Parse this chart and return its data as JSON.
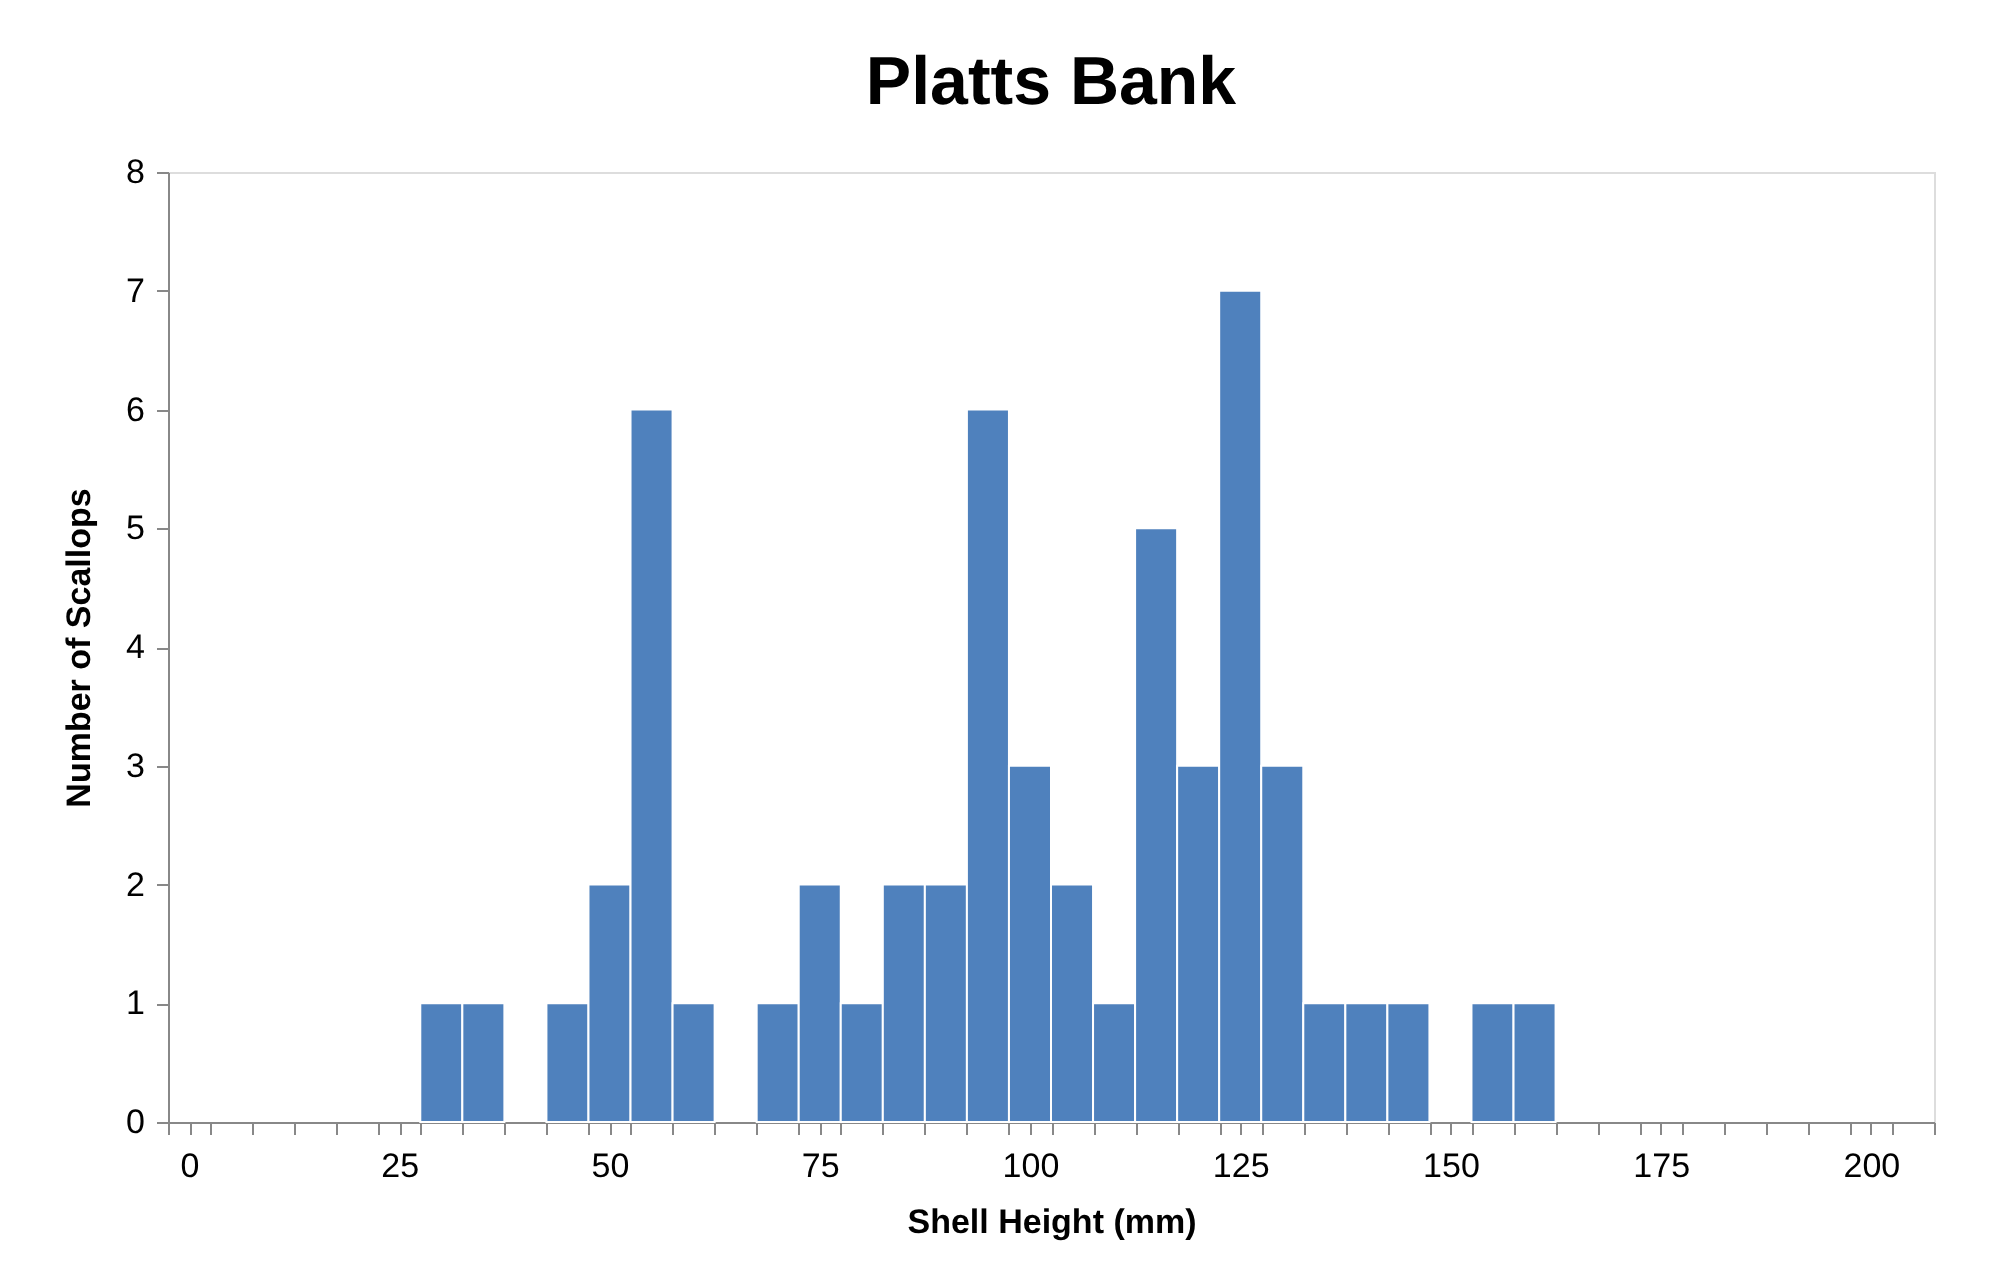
{
  "chart_data": {
    "type": "histogram",
    "title": "Platts Bank",
    "xlabel": "Shell Height (mm)",
    "ylabel": "Number of Scallops",
    "bins": [
      27.5,
      32.5,
      37.5,
      42.5,
      47.5,
      52.5,
      57.5,
      62.5,
      67.5,
      72.5,
      77.5,
      82.5,
      87.5,
      92.5,
      97.5,
      102.5,
      107.5,
      112.5,
      117.5,
      122.5,
      127.5,
      132.5,
      137.5,
      142.5,
      147.5,
      152.5,
      157.5,
      162.5
    ],
    "values": [
      1,
      1,
      0,
      1,
      2,
      6,
      1,
      0,
      1,
      2,
      1,
      2,
      2,
      6,
      3,
      2,
      1,
      5,
      3,
      7,
      3,
      1,
      1,
      1,
      0,
      1,
      1
    ],
    "color": "#4f81bd",
    "xlim": [
      -2.5,
      207.5
    ],
    "xticks": [
      0,
      25,
      50,
      75,
      100,
      125,
      150,
      175,
      200,
      {
        "value": -2.5,
        "label": null
      },
      {
        "value": 2.5,
        "label": null
      },
      {
        "value": 7.5,
        "label": null
      },
      {
        "value": 12.5,
        "label": null
      },
      {
        "value": 17.5,
        "label": null
      },
      {
        "value": 22.5,
        "label": null
      },
      {
        "value": 27.5,
        "label": null
      },
      {
        "value": 32.5,
        "label": null
      },
      {
        "value": 37.5,
        "label": null
      },
      {
        "value": 42.5,
        "label": null
      },
      {
        "value": 47.5,
        "label": null
      },
      {
        "value": 52.5,
        "label": null
      },
      {
        "value": 57.5,
        "label": null
      },
      {
        "value": 62.5,
        "label": null
      },
      {
        "value": 67.5,
        "label": null
      },
      {
        "value": 72.5,
        "label": null
      },
      {
        "value": 77.5,
        "label": null
      },
      {
        "value": 82.5,
        "label": null
      },
      {
        "value": 87.5,
        "label": null
      },
      {
        "value": 92.5,
        "label": null
      },
      {
        "value": 97.5,
        "label": null
      },
      {
        "value": 102.5,
        "label": null
      },
      {
        "value": 107.5,
        "label": null
      },
      {
        "value": 112.5,
        "label": null
      },
      {
        "value": 117.5,
        "label": null
      },
      {
        "value": 122.5,
        "label": null
      },
      {
        "value": 127.5,
        "label": null
      },
      {
        "value": 132.5,
        "label": null
      },
      {
        "value": 137.5,
        "label": null
      },
      {
        "value": 142.5,
        "label": null
      },
      {
        "value": 147.5,
        "label": null
      },
      {
        "value": 152.5,
        "label": null
      },
      {
        "value": 157.5,
        "label": null
      },
      {
        "value": 162.5,
        "label": null
      },
      {
        "value": 167.5,
        "label": null
      },
      {
        "value": 172.5,
        "label": null
      },
      {
        "value": 177.5,
        "label": null
      },
      {
        "value": 182.5,
        "label": null
      },
      {
        "value": 187.5,
        "label": null
      },
      {
        "value": 192.5,
        "label": null
      },
      {
        "value": 197.5,
        "label": null
      },
      {
        "value": 202.5,
        "label": null
      },
      {
        "value": 207.5,
        "label": null
      }
    ],
    "ylim": [
      0,
      8
    ],
    "yticks": [
      0,
      1,
      2,
      3,
      4,
      5,
      6,
      7,
      8
    ],
    "grid": false
  }
}
